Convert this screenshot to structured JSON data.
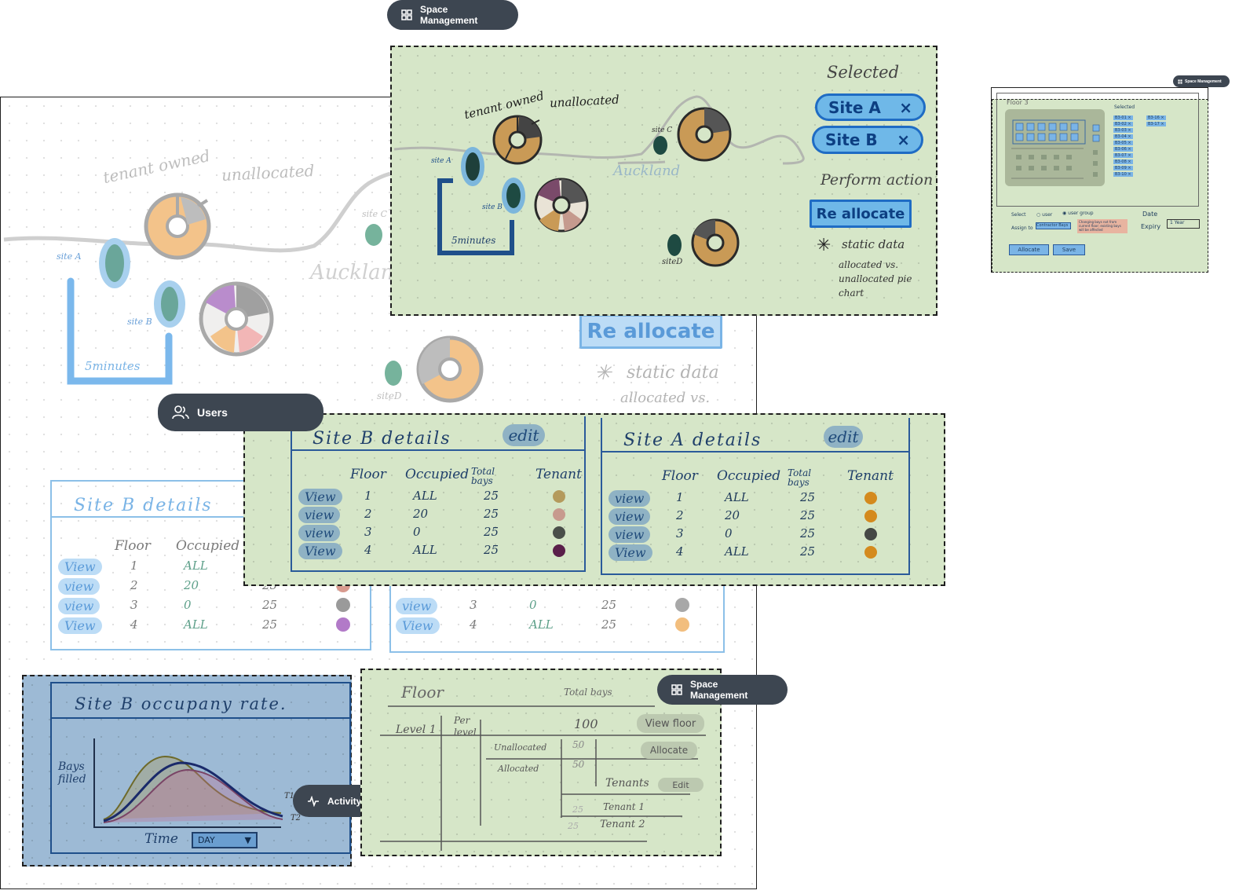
{
  "labels": {
    "space_management_top": "Space Management",
    "space_management_mid": "Space Management",
    "space_management_thumb": "Space Management",
    "users": "Users",
    "activity": "Activity"
  },
  "map": {
    "tenant_owned": "tenant owned",
    "unallocated": "unallocated",
    "site_a": "site A",
    "site_b": "site B",
    "site_c": "site C",
    "site_d": "siteD",
    "city": "Auckland",
    "walk_time": "5minutes"
  },
  "selected_panel": {
    "title": "Selected",
    "items": [
      {
        "label": "Site A",
        "remove": "×"
      },
      {
        "label": "Site B",
        "remove": "×"
      }
    ],
    "perform_action": "Perform action",
    "reallocate": "Re allocate",
    "note_marker": "✳",
    "note_title": "static data",
    "note_body": "allocated vs. unallocated pie chart"
  },
  "background_sketch": {
    "reallocate": "Re allocate",
    "note_title": "static data",
    "note_body": "allocated vs."
  },
  "site_tables": [
    {
      "title": "Site B  details",
      "edit": "edit",
      "headers": [
        "Floor",
        "Occupied",
        "Total bays",
        "Tenant"
      ],
      "rows": [
        {
          "view": "View",
          "floor": "1",
          "occupied": "ALL",
          "total": "25",
          "tenant_color": "#b49a5c"
        },
        {
          "view": "view",
          "floor": "2",
          "occupied": "20",
          "total": "25",
          "tenant_color": "#c79a8e"
        },
        {
          "view": "view",
          "floor": "3",
          "occupied": "0",
          "total": "25",
          "tenant_color": "#4a4f4a"
        },
        {
          "view": "View",
          "floor": "4",
          "occupied": "ALL",
          "total": "25",
          "tenant_color": "#5a1f4a"
        }
      ]
    },
    {
      "title": "Site A  details",
      "edit": "edit",
      "headers": [
        "Floor",
        "Occupied",
        "Total bays",
        "Tenant"
      ],
      "rows": [
        {
          "view": "view",
          "floor": "1",
          "occupied": "ALL",
          "total": "25",
          "tenant_color": "#d48a1e"
        },
        {
          "view": "view",
          "floor": "2",
          "occupied": "20",
          "total": "25",
          "tenant_color": "#d48a1e"
        },
        {
          "view": "view",
          "floor": "3",
          "occupied": "0",
          "total": "25",
          "tenant_color": "#454845"
        },
        {
          "view": "View",
          "floor": "4",
          "occupied": "ALL",
          "total": "25",
          "tenant_color": "#d48a1e"
        }
      ]
    }
  ],
  "bg_table": {
    "title": "Site B  details",
    "headers": [
      "Floor",
      "Occupied"
    ],
    "rows": [
      {
        "view": "View",
        "floor": "1",
        "occupied": "ALL",
        "total": ""
      },
      {
        "view": "view",
        "floor": "2",
        "occupied": "20",
        "total": "25"
      },
      {
        "view": "view",
        "floor": "3",
        "occupied": "0",
        "total": "25"
      },
      {
        "view": "View",
        "floor": "4",
        "occupied": "ALL",
        "total": "25"
      }
    ],
    "colors": [
      "#d89a8e",
      "#9a9a9a",
      "#b27ac8"
    ],
    "right_rows": [
      {
        "view": "view",
        "floor": "3",
        "occupied": "0",
        "total": "25",
        "color": "#a8a8a8"
      },
      {
        "view": "View",
        "floor": "4",
        "occupied": "ALL",
        "total": "25",
        "color": "#f2be7e"
      }
    ]
  },
  "occupancy": {
    "title": "Site B  occupany rate.",
    "ylabel": "Bays filled",
    "xlabel": "Time",
    "dropdown": "DAY",
    "dropdown_arrow": "▼",
    "series_1": "T1",
    "series_2": "T2"
  },
  "floor_panel": {
    "floor": "Floor",
    "total_bays": "Total bays",
    "level": "Level 1",
    "per_level": "Per level",
    "total": "100",
    "view_floor": "View floor",
    "unallocated": "Unallocated",
    "unallocated_count": "50",
    "allocate": "Allocate",
    "allocated": "Allocated",
    "allocated_count": "50",
    "tenants": "Tenants",
    "edit": "Edit",
    "tenant_1_count": "25",
    "tenant_1": "Tenant 1",
    "tenant_2_count": "25",
    "tenant_2": "Tenant 2"
  },
  "thumb": {
    "floor": "Floor 3",
    "selected": "Selected",
    "selected_items": [
      "B3-01 ×",
      "B3-16 ×",
      "B3-02 ×",
      "B3-17 ×",
      "B3-03 ×",
      "B3-04 ×",
      "B3-05 ×",
      "B3-06 ×",
      "B3-07 ×",
      "B3-08 ×",
      "B3-09 ×",
      "B3-10 ×"
    ],
    "select": "Select",
    "user": "user",
    "user_group": "user group",
    "assign_to": "Assign to",
    "assign_value": "Contractor Bays",
    "warning": "Changing bays not from current floor; existing bays will be affected",
    "date": "Date",
    "expiry": "Expiry",
    "date_value": "1 Year",
    "allocate": "Allocate",
    "save": "Save"
  }
}
